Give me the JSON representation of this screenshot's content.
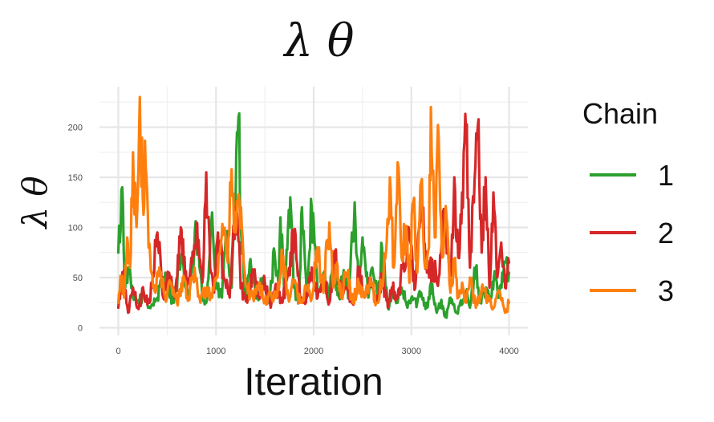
{
  "chart_data": {
    "type": "line",
    "title": "λ θ",
    "xlabel": "Iteration",
    "ylabel": "λ θ",
    "xlim": [
      0,
      4000
    ],
    "ylim": [
      0,
      230
    ],
    "x_ticks": [
      "0",
      "1000",
      "2000",
      "3000",
      "4000"
    ],
    "y_ticks": [
      "0",
      "50",
      "100",
      "150",
      "200"
    ],
    "x_tick_values": [
      0,
      1000,
      2000,
      3000,
      4000
    ],
    "y_tick_values": [
      0,
      50,
      100,
      150,
      200
    ],
    "grid": true,
    "legend": {
      "title": "Chain",
      "position": "right",
      "entries": [
        "1",
        "2",
        "3"
      ]
    },
    "series": [
      {
        "name": "1",
        "color": "#2ca02c",
        "x": [
          0,
          40,
          70,
          100,
          150,
          200,
          260,
          320,
          400,
          480,
          560,
          640,
          720,
          800,
          860,
          900,
          960,
          1000,
          1060,
          1100,
          1160,
          1200,
          1230,
          1260,
          1300,
          1360,
          1420,
          1480,
          1540,
          1600,
          1640,
          1660,
          1700,
          1760,
          1800,
          1850,
          1880,
          1930,
          1980,
          2040,
          2100,
          2160,
          2200,
          2260,
          2300,
          2360,
          2400,
          2420,
          2460,
          2500,
          2560,
          2600,
          2660,
          2700,
          2760,
          2800,
          2860,
          2900,
          2960,
          3000,
          3060,
          3100,
          3160,
          3200,
          3260,
          3300,
          3360,
          3400,
          3460,
          3500,
          3560,
          3600,
          3660,
          3700,
          3760,
          3800,
          3860,
          3900,
          3960,
          4000
        ],
        "values": [
          75,
          140,
          40,
          60,
          30,
          25,
          35,
          20,
          30,
          55,
          25,
          65,
          30,
          95,
          30,
          25,
          115,
          40,
          30,
          95,
          40,
          120,
          210,
          90,
          35,
          60,
          30,
          50,
          25,
          75,
          40,
          110,
          30,
          130,
          40,
          25,
          120,
          30,
          120,
          35,
          55,
          30,
          65,
          30,
          50,
          35,
          90,
          125,
          40,
          90,
          30,
          60,
          30,
          80,
          20,
          35,
          25,
          40,
          20,
          30,
          25,
          35,
          20,
          45,
          15,
          25,
          10,
          30,
          15,
          25,
          35,
          20,
          60,
          25,
          40,
          30,
          55,
          30,
          65,
          55
        ]
      },
      {
        "name": "2",
        "color": "#d62728",
        "x": [
          0,
          50,
          100,
          150,
          200,
          260,
          320,
          400,
          460,
          520,
          580,
          640,
          700,
          740,
          800,
          860,
          900,
          940,
          980,
          1020,
          1080,
          1140,
          1200,
          1260,
          1320,
          1380,
          1440,
          1500,
          1560,
          1620,
          1680,
          1740,
          1800,
          1860,
          1920,
          1980,
          2040,
          2100,
          2160,
          2220,
          2280,
          2340,
          2400,
          2460,
          2520,
          2580,
          2640,
          2700,
          2760,
          2800,
          2860,
          2920,
          2980,
          3040,
          3100,
          3160,
          3220,
          3280,
          3340,
          3400,
          3440,
          3480,
          3520,
          3560,
          3600,
          3640,
          3680,
          3720,
          3760,
          3800,
          3840,
          3880,
          3920,
          3960,
          4000
        ],
        "values": [
          20,
          55,
          15,
          40,
          20,
          35,
          25,
          95,
          30,
          55,
          30,
          100,
          40,
          60,
          105,
          45,
          155,
          60,
          35,
          95,
          50,
          30,
          120,
          40,
          25,
          55,
          30,
          45,
          20,
          40,
          25,
          55,
          95,
          30,
          25,
          60,
          30,
          50,
          25,
          70,
          35,
          40,
          25,
          55,
          30,
          45,
          25,
          50,
          20,
          40,
          30,
          65,
          90,
          40,
          125,
          55,
          60,
          50,
          110,
          40,
          150,
          70,
          135,
          195,
          60,
          125,
          200,
          75,
          150,
          40,
          135,
          50,
          85,
          40,
          65
        ]
      },
      {
        "name": "3",
        "color": "#ff7f0e",
        "x": [
          0,
          30,
          60,
          90,
          120,
          150,
          180,
          200,
          220,
          250,
          280,
          310,
          340,
          380,
          420,
          480,
          540,
          600,
          660,
          720,
          780,
          840,
          900,
          960,
          1020,
          1080,
          1120,
          1160,
          1200,
          1240,
          1280,
          1320,
          1380,
          1440,
          1500,
          1560,
          1620,
          1680,
          1740,
          1800,
          1860,
          1920,
          1980,
          2040,
          2100,
          2160,
          2200,
          2240,
          2280,
          2340,
          2400,
          2460,
          2520,
          2580,
          2640,
          2700,
          2740,
          2780,
          2820,
          2860,
          2900,
          2940,
          2980,
          3020,
          3060,
          3100,
          3140,
          3180,
          3200,
          3240,
          3280,
          3320,
          3360,
          3400,
          3440,
          3480,
          3520,
          3560,
          3600,
          3660,
          3720,
          3780,
          3840,
          3900,
          3960,
          4000
        ],
        "values": [
          25,
          50,
          30,
          90,
          60,
          175,
          115,
          135,
          230,
          130,
          160,
          80,
          55,
          35,
          60,
          30,
          45,
          25,
          50,
          30,
          60,
          25,
          40,
          30,
          55,
          95,
          65,
          158,
          95,
          125,
          70,
          40,
          30,
          45,
          25,
          35,
          30,
          70,
          30,
          45,
          25,
          40,
          30,
          80,
          35,
          105,
          40,
          65,
          30,
          55,
          25,
          45,
          30,
          50,
          25,
          45,
          75,
          150,
          60,
          165,
          70,
          100,
          45,
          125,
          55,
          145,
          60,
          80,
          220,
          90,
          190,
          70,
          110,
          35,
          65,
          30,
          45,
          25,
          50,
          20,
          40,
          30,
          20,
          35,
          15,
          25
        ]
      }
    ]
  }
}
